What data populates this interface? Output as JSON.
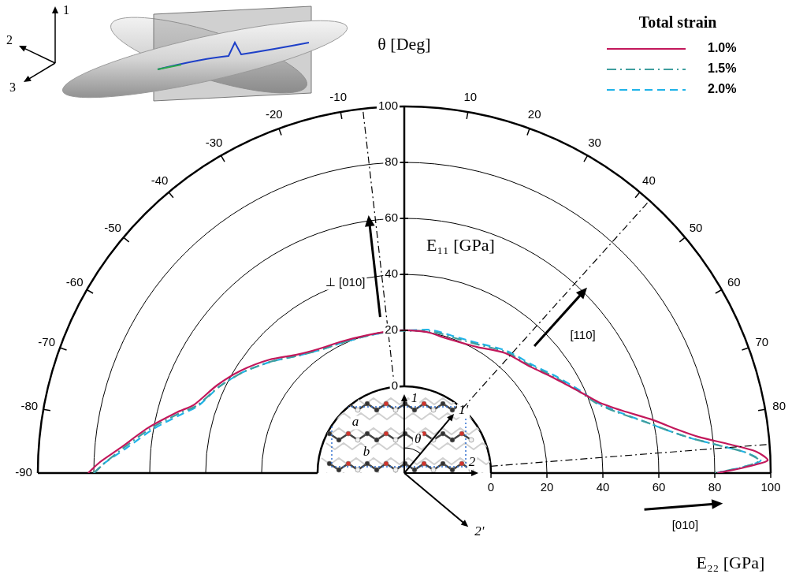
{
  "chart_data": {
    "type": "polar",
    "theta_label": "θ [Deg]",
    "r_label": "E₁₁ [GPa]",
    "r_label_horizontal": "E₂₂ [GPa]",
    "x": [
      -90,
      -88,
      -85,
      -80,
      -75,
      -72,
      -65,
      -58,
      -50,
      -42,
      -35,
      -25,
      -15,
      -5,
      0,
      5,
      10,
      15,
      20,
      25,
      30,
      40,
      50,
      57,
      65,
      70,
      74,
      78,
      81,
      83,
      85,
      86.5,
      88,
      89,
      90
    ],
    "series": [
      {
        "name": "1.0%",
        "color": "#c2185b",
        "line_style": "solid",
        "values": [
          82,
          78,
          71,
          62,
          53,
          48,
          43,
          38,
          32,
          26,
          23,
          21,
          20,
          20,
          20,
          20,
          20,
          19.5,
          19.5,
          20,
          21,
          25,
          28,
          32,
          38,
          43,
          50,
          60,
          68,
          75,
          86,
          95,
          99,
          91,
          81
        ]
      },
      {
        "name": "1.5%",
        "color": "#3f9e9e",
        "line_style": "dashdot",
        "values": [
          80,
          76,
          70,
          61,
          52,
          47,
          42,
          37,
          31,
          25.5,
          22.5,
          20.5,
          19.8,
          19.8,
          19.8,
          20,
          20.5,
          20.5,
          20.5,
          21,
          22,
          25.5,
          28.5,
          32.5,
          38,
          42,
          48,
          57,
          65,
          72,
          82,
          91,
          96,
          90,
          80
        ]
      },
      {
        "name": "2.0%",
        "color": "#1fb3e8",
        "line_style": "dashed",
        "values": [
          80,
          76,
          69,
          60,
          51,
          46.5,
          42,
          37,
          31,
          25.5,
          22.5,
          20.5,
          19.8,
          19.8,
          20,
          20.3,
          21,
          21,
          21,
          21.5,
          22.5,
          26,
          29,
          33,
          38.5,
          42.5,
          48.5,
          57,
          65,
          72,
          82,
          91,
          96.5,
          90,
          80.5
        ]
      }
    ],
    "xlim": [
      -90,
      90
    ],
    "xticks": [
      -90,
      -80,
      -70,
      -60,
      -50,
      -40,
      -30,
      -20,
      -10,
      10,
      20,
      30,
      40,
      50,
      60,
      70,
      80
    ],
    "ylim": [
      0,
      100
    ],
    "yticks": [
      0,
      20,
      40,
      60,
      80,
      100
    ],
    "grid": true,
    "legend": "top right",
    "legend_title": "Total strain",
    "annotations": [
      {
        "text": "⊥ [010]",
        "theta": -6.5
      },
      {
        "text": "[110]",
        "theta": 42
      },
      {
        "text": "[010]",
        "theta": 85.5
      }
    ],
    "insets": {
      "surface_axes": [
        "1",
        "2",
        "3"
      ],
      "lattice_axes": [
        "1",
        "1'",
        "2",
        "2'"
      ],
      "lattice_angle": "θ",
      "lattice_vectors": [
        "a",
        "b"
      ]
    }
  }
}
